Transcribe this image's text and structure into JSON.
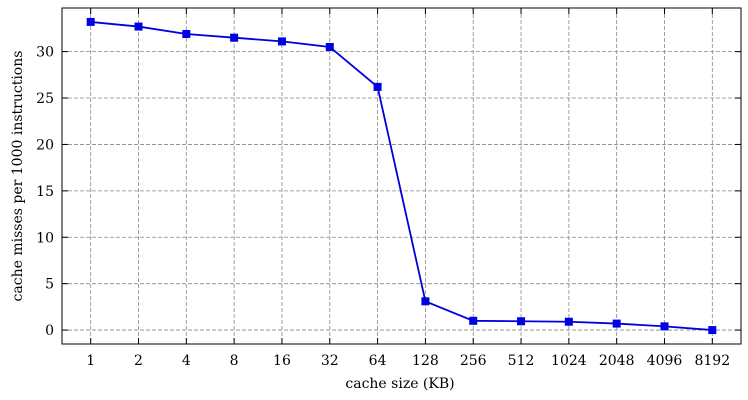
{
  "chart_data": {
    "type": "line",
    "x_label": "cache size (KB)",
    "y_label": "cache misses per 1000 instructions",
    "categories": [
      "1",
      "2",
      "4",
      "8",
      "16",
      "32",
      "64",
      "128",
      "256",
      "512",
      "1024",
      "2048",
      "4096",
      "8192"
    ],
    "series": [
      {
        "color": "#0000e0",
        "values": [
          33.2,
          32.7,
          31.9,
          31.5,
          31.1,
          30.5,
          26.2,
          3.1,
          1.0,
          0.95,
          0.9,
          0.7,
          0.4,
          0.0
        ]
      }
    ],
    "ylim": [
      -1.5,
      34.7
    ],
    "yticks": [
      0,
      5,
      10,
      15,
      20,
      25,
      30
    ],
    "grid": true
  }
}
